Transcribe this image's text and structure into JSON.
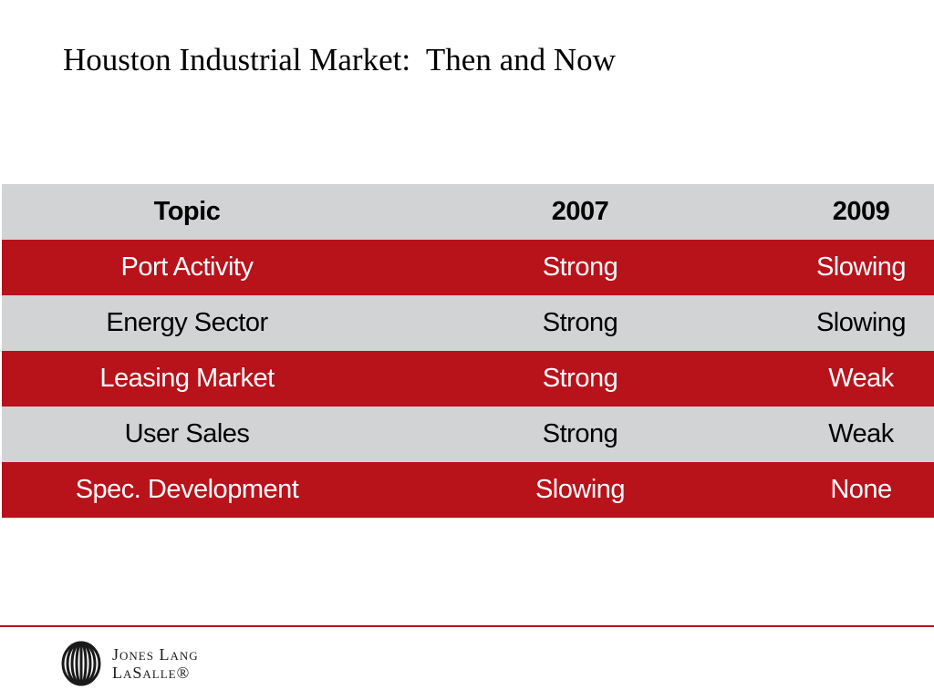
{
  "title": "Houston Industrial Market:  Then and Now",
  "table": {
    "headers": [
      "Topic",
      "2007",
      "2009"
    ],
    "rows": [
      [
        "Port Activity",
        "Strong",
        "Slowing"
      ],
      [
        "Energy Sector",
        "Strong",
        "Slowing"
      ],
      [
        "Leasing Market",
        "Strong",
        "Weak"
      ],
      [
        "User Sales",
        "Strong",
        "Weak"
      ],
      [
        "Spec. Development",
        "Slowing",
        "None"
      ]
    ]
  },
  "colors": {
    "header_row": "#d1d3d4",
    "red_row": "#b8121b",
    "gray_row": "#d1d3d4",
    "footer_rule": "#b8121b"
  },
  "logo": {
    "line1": "Jones Lang",
    "line2": "LaSalle®",
    "icon": "jll-logo-icon"
  }
}
